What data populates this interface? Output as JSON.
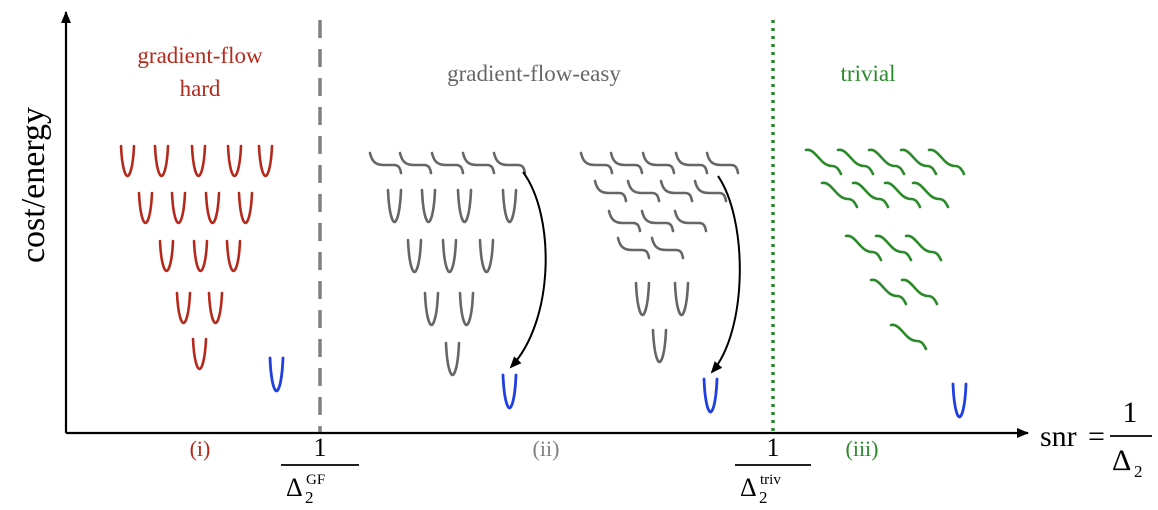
{
  "colors": {
    "hard": "#b5291c",
    "easy": "#666666",
    "trivial": "#2a8a2a",
    "global": "#1f3fe0",
    "axis": "#000000",
    "arrow": "#000000"
  },
  "axes": {
    "y_label": "cost/energy",
    "x_label_snr": "snr",
    "x_label_equals": "=",
    "x_label_numerator": "1",
    "x_label_denominator_symbol": "Δ",
    "x_label_denominator_subscript": "2"
  },
  "regions": {
    "hard": {
      "title_line1": "gradient-flow",
      "title_line2": "hard",
      "roman": "(i)"
    },
    "easy": {
      "title": "gradient-flow-easy",
      "roman": "(ii)"
    },
    "trivial": {
      "title": "trivial",
      "roman": "(iii)"
    }
  },
  "thresholds": {
    "gf": {
      "numerator": "1",
      "symbol": "Δ",
      "subscript": "2",
      "superscript": "GF",
      "line_style": "dashed"
    },
    "triv": {
      "numerator": "1",
      "symbol": "Δ",
      "subscript": "2",
      "superscript": "triv",
      "line_style": "dotted"
    }
  },
  "icons": {
    "local_minimum": "parabola-well-icon",
    "saddle": "step-curve-icon",
    "smooth_slope": "wavy-curve-icon",
    "global_minimum": "blue-parabola-well-icon"
  }
}
